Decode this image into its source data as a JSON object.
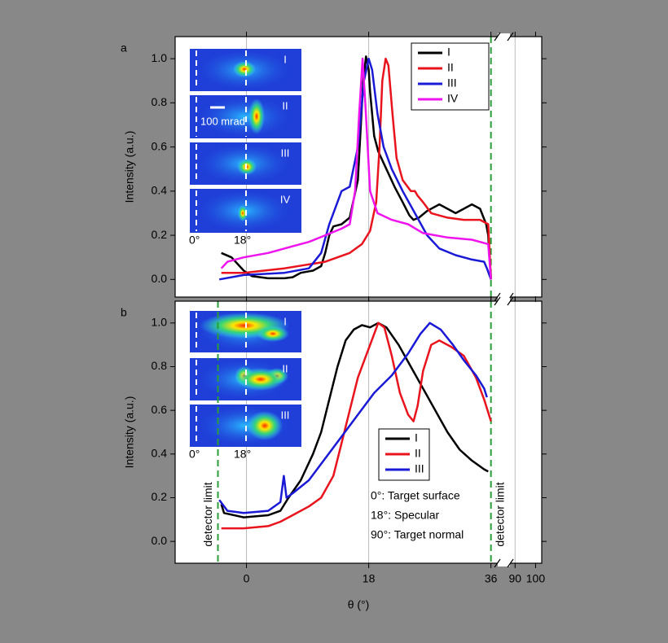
{
  "chart_data": [
    {
      "type": "line",
      "panel_label": "a",
      "ylabel": "Intensity (a.u.)",
      "xlim": [
        -10.5,
        103
      ],
      "axis_break": [
        37,
        87.5
      ],
      "ylim": [
        -0.08,
        1.1
      ],
      "yticks": [
        {
          "value": 0,
          "label": "0.0"
        },
        0.2,
        0.4,
        0.6,
        0.8,
        {
          "value": 1,
          "label": "1.0"
        }
      ],
      "xgrid": [
        0,
        18,
        90
      ],
      "detector_limits": [
        36
      ],
      "legend": "upper right",
      "insets": {
        "labels": [
          "I",
          "II",
          "III",
          "IV"
        ],
        "x_labels": [
          "0°",
          "18°"
        ],
        "scale_label": "100 mrad"
      },
      "series": [
        {
          "name": "I",
          "color": "#000000",
          "x": [
            -3.7,
            -2.2,
            -0.4,
            0.8,
            3.2,
            5.6,
            6.8,
            8,
            9.8,
            11,
            11.6,
            12.2,
            12.8,
            14,
            15.2,
            16.4,
            17.2,
            17.6,
            18,
            18.2,
            18.8,
            19.4,
            20.6,
            21.8,
            23,
            24,
            24.6,
            25.4,
            26.6,
            28.4,
            29.6,
            30.8,
            32,
            33.2,
            34.4,
            35.3,
            35.6,
            36
          ],
          "values": [
            0.12,
            0.1,
            0.04,
            0.015,
            0.005,
            0.005,
            0.01,
            0.03,
            0.04,
            0.06,
            0.12,
            0.2,
            0.24,
            0.25,
            0.28,
            0.45,
            0.9,
            1.01,
            0.95,
            0.85,
            0.65,
            0.58,
            0.5,
            0.42,
            0.35,
            0.29,
            0.27,
            0.28,
            0.31,
            0.34,
            0.32,
            0.3,
            0.32,
            0.34,
            0.32,
            0.25,
            0.2,
            0.0
          ]
        },
        {
          "name": "II",
          "color": "#e8131c",
          "x": [
            -3.7,
            -0.4,
            5.6,
            11.6,
            15.2,
            17,
            18.2,
            19.1,
            19.6,
            20,
            20.5,
            20.9,
            21.5,
            22.1,
            23,
            24.2,
            24.8,
            25.2,
            26,
            27.2,
            29.6,
            32,
            34.4,
            35.6,
            36
          ],
          "values": [
            0.03,
            0.03,
            0.05,
            0.08,
            0.12,
            0.16,
            0.22,
            0.35,
            0.6,
            0.9,
            1.0,
            0.97,
            0.75,
            0.55,
            0.45,
            0.4,
            0.4,
            0.38,
            0.35,
            0.3,
            0.28,
            0.27,
            0.27,
            0.25,
            0.0
          ]
        },
        {
          "name": "III",
          "color": "#1a1ad6",
          "x": [
            -4,
            -0.4,
            5.6,
            9.2,
            11,
            12.2,
            14,
            15.2,
            16.4,
            17.3,
            18,
            18.5,
            19.3,
            20.2,
            21.4,
            23,
            24.8,
            26.6,
            28.4,
            30.8,
            33.2,
            35,
            35.4,
            36
          ],
          "values": [
            0.0,
            0.02,
            0.03,
            0.05,
            0.12,
            0.25,
            0.4,
            0.42,
            0.6,
            0.9,
            1.0,
            0.95,
            0.75,
            0.6,
            0.5,
            0.4,
            0.3,
            0.2,
            0.14,
            0.11,
            0.09,
            0.08,
            0.05,
            0.0
          ]
        },
        {
          "name": "IV",
          "color": "#ee14ee",
          "x": [
            -3.7,
            -2.8,
            -0.4,
            3.2,
            6.8,
            9.2,
            11.6,
            14,
            15.2,
            16,
            16.6,
            17.1,
            17.5,
            18.2,
            19.3,
            21.4,
            23.8,
            26,
            29.6,
            33.2,
            35.6,
            36
          ],
          "values": [
            0.05,
            0.08,
            0.1,
            0.12,
            0.15,
            0.17,
            0.2,
            0.23,
            0.25,
            0.4,
            0.75,
            1.0,
            0.8,
            0.4,
            0.3,
            0.27,
            0.25,
            0.21,
            0.19,
            0.18,
            0.16,
            0.0
          ]
        }
      ]
    },
    {
      "type": "line",
      "panel_label": "b",
      "ylabel": "Intensity (a.u.)",
      "xlabel": "θ (°)",
      "xlim": [
        -10.5,
        103
      ],
      "axis_break": [
        37,
        87.5
      ],
      "ylim": [
        -0.1,
        1.1
      ],
      "yticks": [
        {
          "value": 0,
          "label": "0.0"
        },
        0.2,
        0.4,
        0.6,
        0.8,
        {
          "value": 1,
          "label": "1.0"
        }
      ],
      "xticks": [
        0,
        18,
        36,
        90,
        100
      ],
      "xgrid": [
        0,
        18,
        90
      ],
      "detector_limits": [
        -4.2,
        36
      ],
      "detector_label": "detector limit",
      "legend": "center right",
      "insets": {
        "labels": [
          "I",
          "II",
          "III"
        ],
        "x_labels": [
          "0°",
          "18°"
        ]
      },
      "annotations": [
        "0°: Target surface",
        "18°: Specular",
        "90°: Target normal"
      ],
      "series": [
        {
          "name": "I",
          "color": "#000000",
          "x": [
            -3.7,
            -3.3,
            -0.4,
            3.2,
            5,
            5.6,
            6.2,
            8,
            9.8,
            11,
            12.2,
            13.4,
            14.6,
            15.8,
            17,
            18.2,
            19.4,
            20.6,
            22.4,
            24.2,
            26,
            27.8,
            29.6,
            31.4,
            33.2,
            35,
            35.6
          ],
          "values": [
            0.17,
            0.13,
            0.11,
            0.12,
            0.14,
            0.17,
            0.2,
            0.28,
            0.4,
            0.5,
            0.65,
            0.8,
            0.92,
            0.97,
            0.99,
            0.98,
            1.0,
            0.98,
            0.9,
            0.8,
            0.7,
            0.6,
            0.5,
            0.42,
            0.37,
            0.33,
            0.32
          ]
        },
        {
          "name": "II",
          "color": "#e8131c",
          "x": [
            -3.7,
            -0.4,
            3.2,
            5,
            6.8,
            9.2,
            11,
            12.8,
            14,
            15.2,
            16.4,
            17.6,
            18.8,
            19.4,
            20.3,
            21.4,
            22.6,
            23.8,
            24.6,
            25.2,
            26,
            27.2,
            28.4,
            30.2,
            32,
            33.8,
            35,
            36
          ],
          "values": [
            0.06,
            0.06,
            0.07,
            0.09,
            0.12,
            0.16,
            0.2,
            0.3,
            0.45,
            0.6,
            0.75,
            0.85,
            0.95,
            1.0,
            0.98,
            0.85,
            0.68,
            0.58,
            0.55,
            0.62,
            0.78,
            0.9,
            0.92,
            0.89,
            0.85,
            0.75,
            0.65,
            0.55
          ]
        },
        {
          "name": "III",
          "color": "#1a1ad6",
          "x": [
            -4,
            -2.8,
            -0.4,
            3.2,
            5,
            5.5,
            5.9,
            6.8,
            9.2,
            11.6,
            14,
            16.4,
            18.8,
            21.4,
            23.8,
            25.6,
            27,
            28.6,
            30.4,
            32,
            33.8,
            35,
            35.4
          ],
          "values": [
            0.19,
            0.14,
            0.13,
            0.14,
            0.18,
            0.3,
            0.2,
            0.22,
            0.28,
            0.38,
            0.48,
            0.58,
            0.68,
            0.76,
            0.86,
            0.95,
            1.0,
            0.97,
            0.9,
            0.83,
            0.76,
            0.7,
            0.66
          ]
        }
      ]
    }
  ]
}
